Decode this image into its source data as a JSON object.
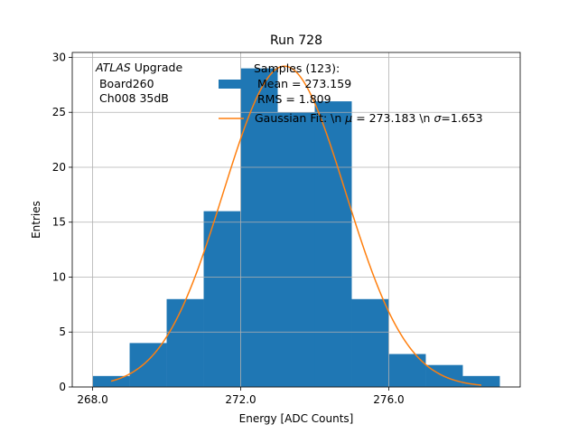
{
  "chart_data": {
    "type": "bar",
    "title": "Run 728",
    "xlabel": "Energy [ADC Counts]",
    "ylabel": "Entries",
    "xlim": [
      267.45,
      279.55
    ],
    "ylim": [
      0,
      30.45
    ],
    "grid": true,
    "x_ticks": [
      268,
      272,
      276
    ],
    "x_tick_labels": [
      "268.0",
      "272.0",
      "276.0"
    ],
    "y_ticks": [
      0,
      5,
      10,
      15,
      20,
      25,
      30
    ],
    "y_tick_labels": [
      "0",
      "5",
      "10",
      "15",
      "20",
      "25",
      "30"
    ],
    "histogram": {
      "name": "Samples (123):",
      "bin_edges": [
        268,
        269,
        270,
        271,
        272,
        273,
        274,
        275,
        276,
        277,
        278,
        279
      ],
      "counts": [
        1,
        4,
        8,
        16,
        29,
        25,
        26,
        8,
        3,
        2,
        1
      ],
      "color": "#1f77b4"
    },
    "fit": {
      "name": "Gaussian Fit",
      "mu": 273.183,
      "sigma": 1.653,
      "amplitude": 29.2,
      "x_range": [
        268.5,
        278.5
      ],
      "color": "#ff7f0e"
    },
    "annotation": {
      "line1_italic": "ATLAS",
      "line1_rest": " Upgrade",
      "line2": " Board260",
      "line3": " Ch008 35dB"
    },
    "legend": {
      "position": "top-right",
      "hist_label_lines": [
        "Samples (123):",
        " Mean = 273.159",
        " RMS = 1.809"
      ],
      "fit_label_prefix": "Gaussian Fit: \\n ",
      "fit_label_mu": "μ",
      "fit_label_mid": " = 273.183 \\n ",
      "fit_label_sigma": "σ",
      "fit_label_end": "=1.653"
    }
  }
}
